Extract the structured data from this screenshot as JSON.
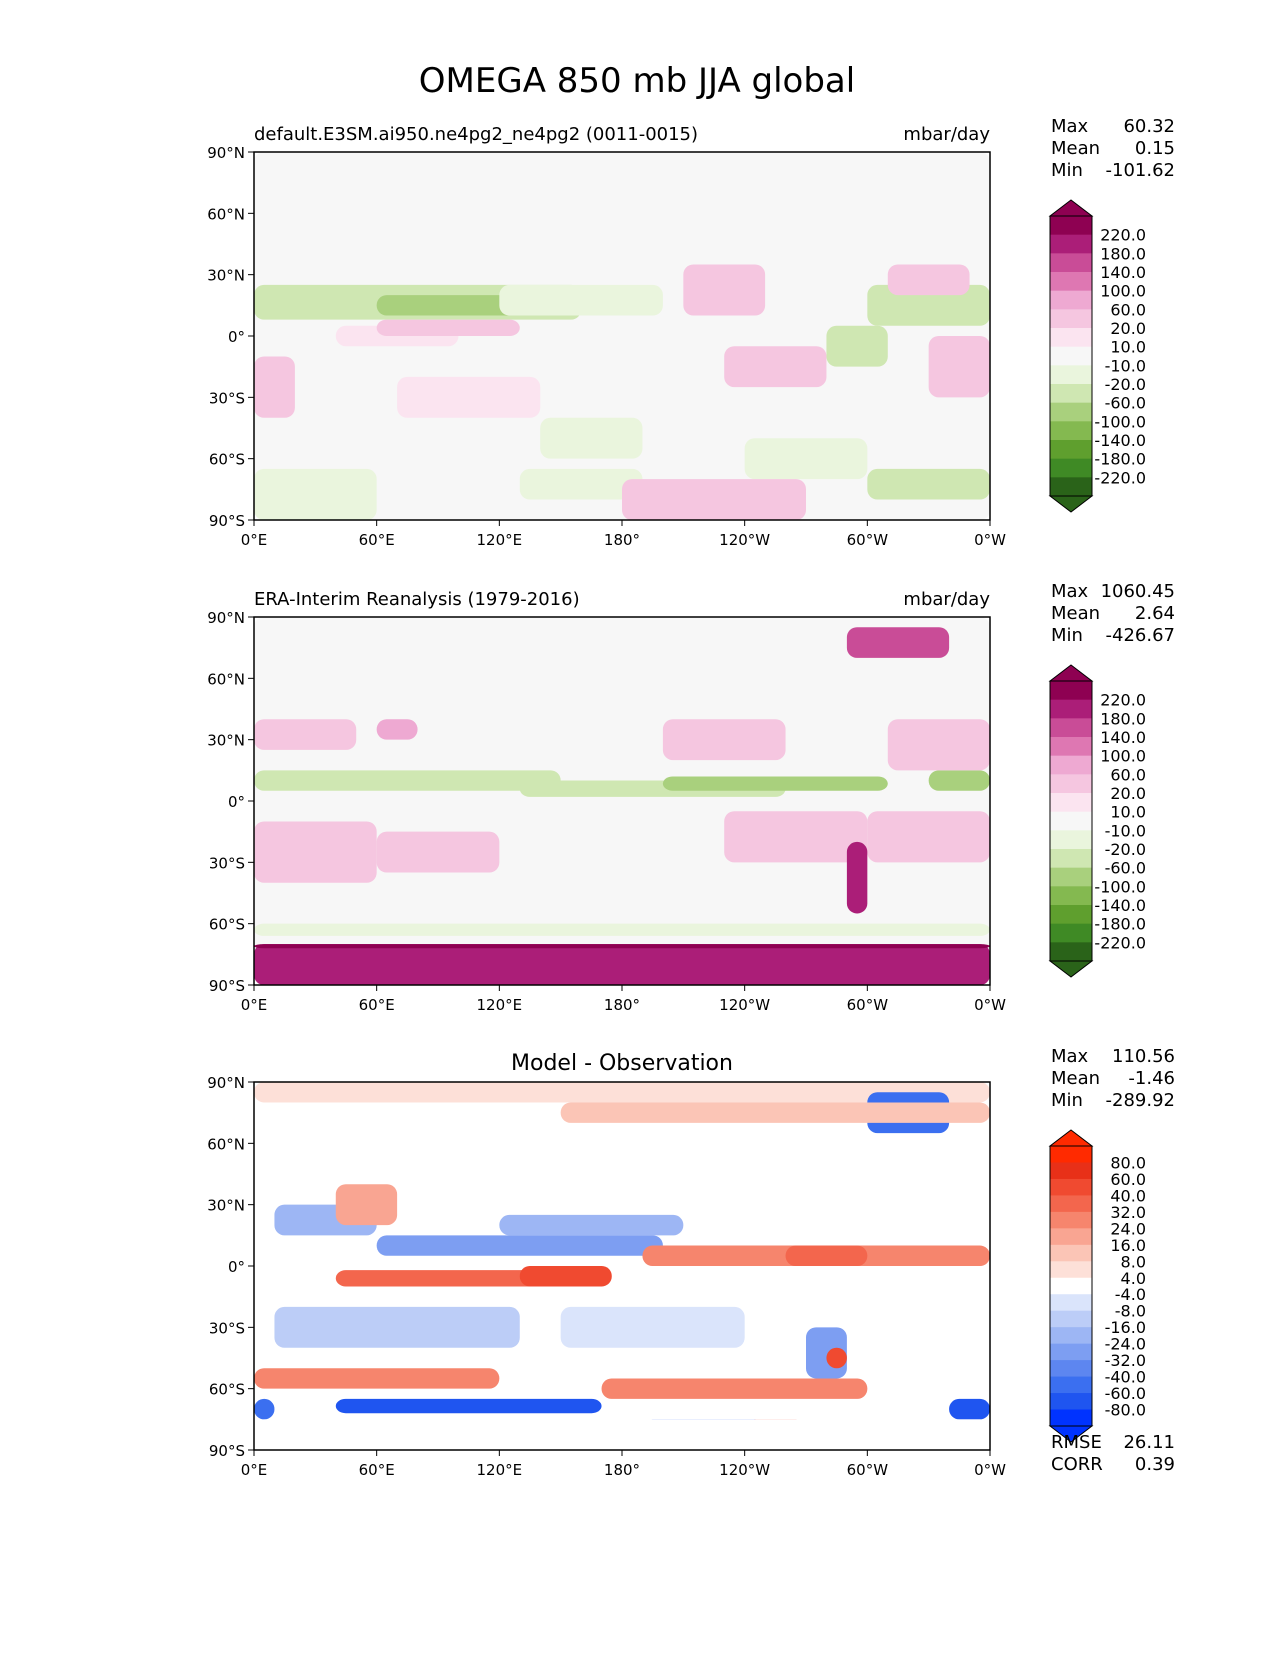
{
  "title": "OMEGA 850 mb JJA global",
  "axes": {
    "lat_labels": [
      "90°N",
      "60°N",
      "30°N",
      "0°",
      "30°S",
      "60°S",
      "90°S"
    ],
    "lon_labels": [
      "0°E",
      "60°E",
      "120°E",
      "180°",
      "120°W",
      "60°W",
      "0°W"
    ]
  },
  "colors": {
    "omega_levels": [
      "#2a6319",
      "#3f8a25",
      "#5f9f2e",
      "#84b950",
      "#a9d07d",
      "#cfe7b2",
      "#eaf5dd",
      "#f7f7f7",
      "#fbe4f0",
      "#f5c6e0",
      "#eea9d2",
      "#de77b2",
      "#c94c97",
      "#ab1e78",
      "#8e0152"
    ],
    "diff_levels": [
      "#0033ff",
      "#1f55f0",
      "#3b6ff0",
      "#5d86f0",
      "#7d9ef2",
      "#9db6f4",
      "#bccdf7",
      "#dae4fb",
      "#ffffff",
      "#fde0d8",
      "#fbc5b6",
      "#f9a592",
      "#f6856d",
      "#f3664d",
      "#f04a30",
      "#e83018",
      "#ff2a00"
    ]
  },
  "chart_data": [
    {
      "type": "heatmap",
      "title": "default.E3SM.ai950.ne4pg2_ne4pg2 (0011-0015)",
      "units": "mbar/day",
      "stats": [
        {
          "label": "Max",
          "value": "60.32"
        },
        {
          "label": "Mean",
          "value": "0.15"
        },
        {
          "label": "Min",
          "value": "-101.62"
        }
      ],
      "colorbar_ticks": [
        "220.0",
        "180.0",
        "140.0",
        "100.0",
        "60.0",
        "20.0",
        "10.0",
        "-10.0",
        "-20.0",
        "-60.0",
        "-100.0",
        "-140.0",
        "-180.0",
        "-220.0"
      ],
      "xlim": [
        0,
        360
      ],
      "ylim": [
        -90,
        90
      ],
      "regions": [
        {
          "lon": [
            0,
            360
          ],
          "lat": [
            -90,
            90
          ],
          "level": 7
        },
        {
          "lon": [
            0,
            160
          ],
          "lat": [
            8,
            25
          ],
          "level": 5
        },
        {
          "lon": [
            60,
            180
          ],
          "lat": [
            10,
            20
          ],
          "level": 4
        },
        {
          "lon": [
            120,
            200
          ],
          "lat": [
            10,
            25
          ],
          "level": 6
        },
        {
          "lon": [
            300,
            360
          ],
          "lat": [
            5,
            25
          ],
          "level": 5
        },
        {
          "lon": [
            280,
            310
          ],
          "lat": [
            -15,
            5
          ],
          "level": 5
        },
        {
          "lon": [
            140,
            190
          ],
          "lat": [
            -60,
            -40
          ],
          "level": 6
        },
        {
          "lon": [
            240,
            300
          ],
          "lat": [
            -70,
            -50
          ],
          "level": 6
        },
        {
          "lon": [
            0,
            60
          ],
          "lat": [
            -90,
            -65
          ],
          "level": 6
        },
        {
          "lon": [
            130,
            190
          ],
          "lat": [
            -80,
            -65
          ],
          "level": 6
        },
        {
          "lon": [
            300,
            360
          ],
          "lat": [
            -80,
            -65
          ],
          "level": 5
        },
        {
          "lon": [
            40,
            100
          ],
          "lat": [
            -5,
            5
          ],
          "level": 8
        },
        {
          "lon": [
            60,
            130
          ],
          "lat": [
            0,
            8
          ],
          "level": 9
        },
        {
          "lon": [
            0,
            20
          ],
          "lat": [
            -40,
            -10
          ],
          "level": 9
        },
        {
          "lon": [
            70,
            140
          ],
          "lat": [
            -40,
            -20
          ],
          "level": 8
        },
        {
          "lon": [
            230,
            280
          ],
          "lat": [
            -25,
            -5
          ],
          "level": 9
        },
        {
          "lon": [
            210,
            250
          ],
          "lat": [
            10,
            35
          ],
          "level": 9
        },
        {
          "lon": [
            310,
            350
          ],
          "lat": [
            20,
            35
          ],
          "level": 9
        },
        {
          "lon": [
            330,
            360
          ],
          "lat": [
            -30,
            0
          ],
          "level": 9
        },
        {
          "lon": [
            180,
            270
          ],
          "lat": [
            -90,
            -70
          ],
          "level": 9
        }
      ]
    },
    {
      "type": "heatmap",
      "title": "ERA-Interim Reanalysis (1979-2016)",
      "units": "mbar/day",
      "stats": [
        {
          "label": "Max",
          "value": "1060.45"
        },
        {
          "label": "Mean",
          "value": "2.64"
        },
        {
          "label": "Min",
          "value": "-426.67"
        }
      ],
      "colorbar_ticks": [
        "220.0",
        "180.0",
        "140.0",
        "100.0",
        "60.0",
        "20.0",
        "10.0",
        "-10.0",
        "-20.0",
        "-60.0",
        "-100.0",
        "-140.0",
        "-180.0",
        "-220.0"
      ],
      "xlim": [
        0,
        360
      ],
      "ylim": [
        -90,
        90
      ],
      "regions": [
        {
          "lon": [
            0,
            360
          ],
          "lat": [
            -90,
            90
          ],
          "level": 7
        },
        {
          "lon": [
            0,
            150
          ],
          "lat": [
            5,
            15
          ],
          "level": 5
        },
        {
          "lon": [
            130,
            260
          ],
          "lat": [
            2,
            10
          ],
          "level": 5
        },
        {
          "lon": [
            200,
            310
          ],
          "lat": [
            5,
            12
          ],
          "level": 4
        },
        {
          "lon": [
            330,
            360
          ],
          "lat": [
            5,
            15
          ],
          "level": 4
        },
        {
          "lon": [
            0,
            50
          ],
          "lat": [
            25,
            40
          ],
          "level": 9
        },
        {
          "lon": [
            60,
            80
          ],
          "lat": [
            30,
            40
          ],
          "level": 10
        },
        {
          "lon": [
            200,
            260
          ],
          "lat": [
            20,
            40
          ],
          "level": 9
        },
        {
          "lon": [
            310,
            360
          ],
          "lat": [
            15,
            40
          ],
          "level": 9
        },
        {
          "lon": [
            0,
            60
          ],
          "lat": [
            -40,
            -10
          ],
          "level": 9
        },
        {
          "lon": [
            60,
            120
          ],
          "lat": [
            -35,
            -15
          ],
          "level": 9
        },
        {
          "lon": [
            230,
            300
          ],
          "lat": [
            -30,
            -5
          ],
          "level": 9
        },
        {
          "lon": [
            300,
            360
          ],
          "lat": [
            -30,
            -5
          ],
          "level": 9
        },
        {
          "lon": [
            290,
            340
          ],
          "lat": [
            70,
            85
          ],
          "level": 12
        },
        {
          "lon": [
            0,
            360
          ],
          "lat": [
            -90,
            -70
          ],
          "level": 13
        },
        {
          "lon": [
            0,
            360
          ],
          "lat": [
            -72,
            -70
          ],
          "level": 14
        },
        {
          "lon": [
            0,
            360
          ],
          "lat": [
            -66,
            -60
          ],
          "level": 6
        },
        {
          "lon": [
            290,
            300
          ],
          "lat": [
            -55,
            -20
          ],
          "level": 13
        }
      ]
    },
    {
      "type": "heatmap",
      "title": "Model - Observation",
      "units": "",
      "stats": [
        {
          "label": "Max",
          "value": "110.56"
        },
        {
          "label": "Mean",
          "value": "-1.46"
        },
        {
          "label": "Min",
          "value": "-289.92"
        }
      ],
      "extra_stats": [
        {
          "label": "RMSE",
          "value": "26.11"
        },
        {
          "label": "CORR",
          "value": "0.39"
        }
      ],
      "colorbar_ticks": [
        "80.0",
        "60.0",
        "40.0",
        "32.0",
        "24.0",
        "16.0",
        "8.0",
        "4.0",
        "-4.0",
        "-8.0",
        "-16.0",
        "-24.0",
        "-32.0",
        "-40.0",
        "-60.0",
        "-80.0"
      ],
      "xlim": [
        0,
        360
      ],
      "ylim": [
        -90,
        90
      ],
      "regions": [
        {
          "lon": [
            0,
            360
          ],
          "lat": [
            -90,
            90
          ],
          "level": 8
        },
        {
          "lon": [
            0,
            360
          ],
          "lat": [
            80,
            90
          ],
          "level": 9
        },
        {
          "lon": [
            10,
            60
          ],
          "lat": [
            15,
            30
          ],
          "level": 5
        },
        {
          "lon": [
            60,
            200
          ],
          "lat": [
            5,
            15
          ],
          "level": 4
        },
        {
          "lon": [
            120,
            210
          ],
          "lat": [
            15,
            25
          ],
          "level": 5
        },
        {
          "lon": [
            40,
            140
          ],
          "lat": [
            -10,
            -2
          ],
          "level": 13
        },
        {
          "lon": [
            130,
            175
          ],
          "lat": [
            -10,
            0
          ],
          "level": 14
        },
        {
          "lon": [
            190,
            360
          ],
          "lat": [
            0,
            10
          ],
          "level": 12
        },
        {
          "lon": [
            260,
            300
          ],
          "lat": [
            0,
            10
          ],
          "level": 13
        },
        {
          "lon": [
            10,
            130
          ],
          "lat": [
            -40,
            -20
          ],
          "level": 6
        },
        {
          "lon": [
            150,
            240
          ],
          "lat": [
            -40,
            -20
          ],
          "level": 7
        },
        {
          "lon": [
            0,
            120
          ],
          "lat": [
            -60,
            -50
          ],
          "level": 12
        },
        {
          "lon": [
            170,
            300
          ],
          "lat": [
            -65,
            -55
          ],
          "level": 12
        },
        {
          "lon": [
            40,
            170
          ],
          "lat": [
            -72,
            -65
          ],
          "level": 1
        },
        {
          "lon": [
            190,
            250
          ],
          "lat": [
            -90,
            -75
          ],
          "level": 1
        },
        {
          "lon": [
            240,
            270
          ],
          "lat": [
            -90,
            -75
          ],
          "level": 14
        },
        {
          "lon": [
            300,
            340
          ],
          "lat": [
            65,
            85
          ],
          "level": 2
        },
        {
          "lon": [
            270,
            290
          ],
          "lat": [
            -55,
            -30
          ],
          "level": 4
        },
        {
          "lon": [
            280,
            290
          ],
          "lat": [
            -50,
            -40
          ],
          "level": 14
        },
        {
          "lon": [
            40,
            70
          ],
          "lat": [
            20,
            40
          ],
          "level": 11
        },
        {
          "lon": [
            150,
            360
          ],
          "lat": [
            70,
            80
          ],
          "level": 10
        },
        {
          "lon": [
            340,
            360
          ],
          "lat": [
            -75,
            -65
          ],
          "level": 1
        },
        {
          "lon": [
            0,
            10
          ],
          "lat": [
            -75,
            -65
          ],
          "level": 2
        },
        {
          "lon": [
            0,
            360
          ],
          "lat": [
            -90,
            -75
          ],
          "level": 8
        }
      ]
    }
  ]
}
